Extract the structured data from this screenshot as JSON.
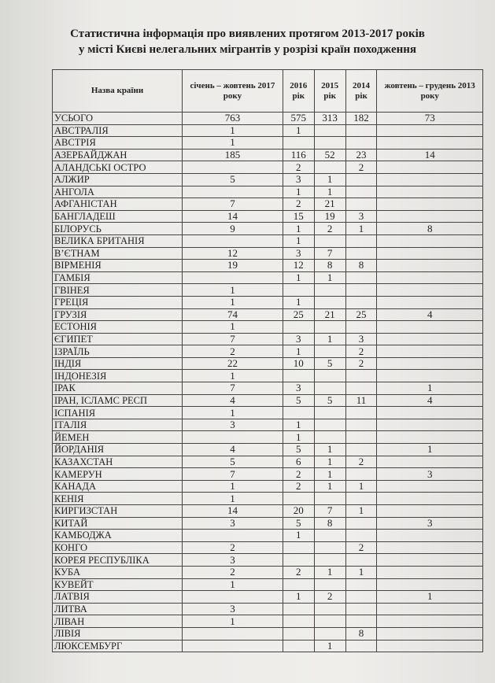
{
  "title": {
    "line1": "Статистична інформація про виявлених протягом 2013-2017 років",
    "line2": "у місті Києві нелегальних мігрантів у розрізі країн походження"
  },
  "table": {
    "headers": [
      "Назва країни",
      "січень – жовтень 2017 року",
      "2016 рік",
      "2015 рік",
      "2014 рік",
      "жовтень – грудень 2013 року"
    ],
    "rows": [
      [
        "УСЬОГО",
        "763",
        "575",
        "313",
        "182",
        "73"
      ],
      [
        "АВСТРАЛІЯ",
        "1",
        "1",
        "",
        "",
        ""
      ],
      [
        "АВСТРІЯ",
        "1",
        "",
        "",
        "",
        ""
      ],
      [
        "АЗЕРБАЙДЖАН",
        "185",
        "116",
        "52",
        "23",
        "14"
      ],
      [
        "АЛАНДСЬКІ ОСТРО",
        "",
        "2",
        "",
        "2",
        ""
      ],
      [
        "АЛЖИР",
        "5",
        "3",
        "1",
        "",
        ""
      ],
      [
        "АНГОЛА",
        "",
        "1",
        "1",
        "",
        ""
      ],
      [
        "АФГАНІСТАН",
        "7",
        "2",
        "21",
        "",
        ""
      ],
      [
        "БАНГЛАДЕШ",
        "14",
        "15",
        "19",
        "3",
        ""
      ],
      [
        "БІЛОРУСЬ",
        "9",
        "1",
        "2",
        "1",
        "8"
      ],
      [
        "ВЕЛИКА БРИТАНІЯ",
        "",
        "1",
        "",
        "",
        ""
      ],
      [
        "В’ЄТНАМ",
        "12",
        "3",
        "7",
        "",
        ""
      ],
      [
        "ВІРМЕНІЯ",
        "19",
        "12",
        "8",
        "8",
        ""
      ],
      [
        "ГАМБІЯ",
        "",
        "1",
        "1",
        "",
        ""
      ],
      [
        "ГВІНЕЯ",
        "1",
        "",
        "",
        "",
        ""
      ],
      [
        "ГРЕЦІЯ",
        "1",
        "1",
        "",
        "",
        ""
      ],
      [
        "ГРУЗІЯ",
        "74",
        "25",
        "21",
        "25",
        "4"
      ],
      [
        "ЕСТОНІЯ",
        "1",
        "",
        "",
        "",
        ""
      ],
      [
        "ЄГИПЕТ",
        "7",
        "3",
        "1",
        "3",
        ""
      ],
      [
        "ІЗРАЇЛЬ",
        "2",
        "1",
        "",
        "2",
        ""
      ],
      [
        "ІНДІЯ",
        "22",
        "10",
        "5",
        "2",
        ""
      ],
      [
        "ІНДОНЕЗІЯ",
        "1",
        "",
        "",
        "",
        ""
      ],
      [
        "ІРАК",
        "7",
        "3",
        "",
        "",
        "1"
      ],
      [
        "ІРАН, ІСЛАМС РЕСП",
        "4",
        "5",
        "5",
        "11",
        "4"
      ],
      [
        "ІСПАНІЯ",
        "1",
        "",
        "",
        "",
        ""
      ],
      [
        "ІТАЛІЯ",
        "3",
        "1",
        "",
        "",
        ""
      ],
      [
        "ЙЕМЕН",
        "",
        "1",
        "",
        "",
        ""
      ],
      [
        "ЙОРДАНІЯ",
        "4",
        "5",
        "1",
        "",
        "1"
      ],
      [
        "КАЗАХСТАН",
        "5",
        "6",
        "1",
        "2",
        ""
      ],
      [
        "КАМЕРУН",
        "7",
        "2",
        "1",
        "",
        "3"
      ],
      [
        "КАНАДА",
        "1",
        "2",
        "1",
        "1",
        ""
      ],
      [
        "КЕНІЯ",
        "1",
        "",
        "",
        "",
        ""
      ],
      [
        "КИРГИЗСТАН",
        "14",
        "20",
        "7",
        "1",
        ""
      ],
      [
        "КИТАЙ",
        "3",
        "5",
        "8",
        "",
        "3"
      ],
      [
        "КАМБОДЖА",
        "",
        "1",
        "",
        "",
        ""
      ],
      [
        "КОНГО",
        "2",
        "",
        "",
        "2",
        ""
      ],
      [
        "КОРЕЯ РЕСПУБЛІКА",
        "3",
        "",
        "",
        "",
        ""
      ],
      [
        "КУБА",
        "2",
        "2",
        "1",
        "1",
        ""
      ],
      [
        "КУВЕЙТ",
        "1",
        "",
        "",
        "",
        ""
      ],
      [
        "ЛАТВІЯ",
        "",
        "1",
        "2",
        "",
        "1"
      ],
      [
        "ЛИТВА",
        "3",
        "",
        "",
        "",
        ""
      ],
      [
        "ЛІВАН",
        "1",
        "",
        "",
        "",
        ""
      ],
      [
        "ЛІВІЯ",
        "",
        "",
        "",
        "8",
        ""
      ],
      [
        "ЛЮКСЕМБУРГ",
        "",
        "",
        "1",
        "",
        ""
      ]
    ]
  }
}
